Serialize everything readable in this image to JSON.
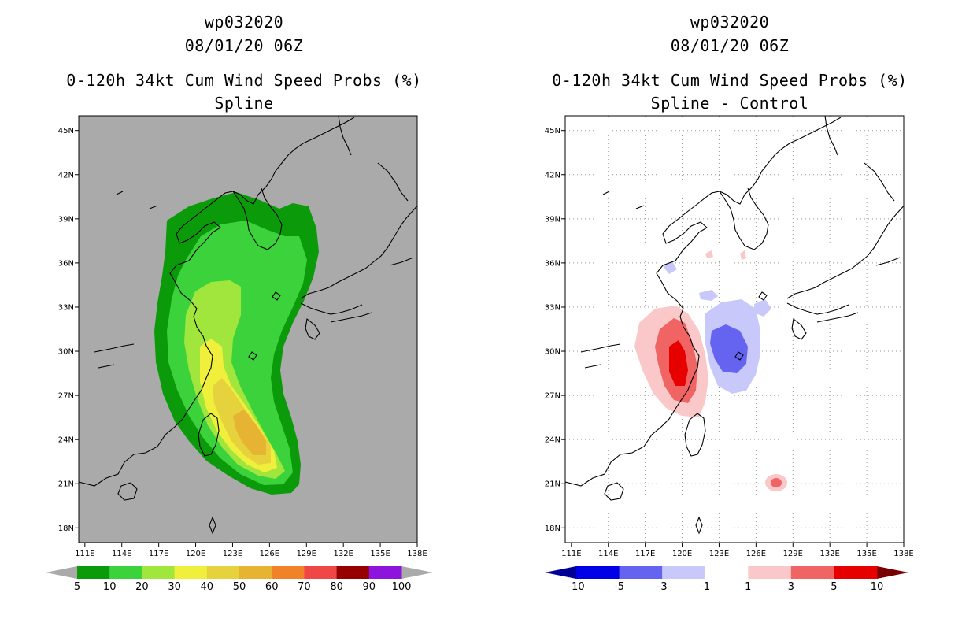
{
  "panels": [
    {
      "title_line1": "wp032020",
      "title_line2": "08/01/20 06Z",
      "title_line3": "0-120h 34kt Cum Wind Speed Probs (%)",
      "title_line4": "Spline"
    },
    {
      "title_line1": "wp032020",
      "title_line2": "08/01/20 06Z",
      "title_line3": "0-120h 34kt Cum Wind Speed Probs (%)",
      "title_line4": "Spline - Control"
    }
  ],
  "chart_data": [
    {
      "type": "heatmap",
      "title": "0-120h 34kt Cum Wind Speed Probs (%) Spline",
      "x_ticks": [
        "111E",
        "114E",
        "117E",
        "120E",
        "123E",
        "126E",
        "129E",
        "132E",
        "135E",
        "138E"
      ],
      "y_ticks": [
        "45N",
        "42N",
        "39N",
        "36N",
        "33N",
        "30N",
        "27N",
        "24N",
        "21N",
        "18N"
      ],
      "xlim": [
        110.5,
        138
      ],
      "ylim": [
        17,
        46
      ],
      "background": "#aaaaaa",
      "grid": false,
      "colorbar": {
        "labels": [
          "5",
          "10",
          "20",
          "30",
          "40",
          "50",
          "60",
          "70",
          "80",
          "90",
          "100"
        ],
        "colors": [
          "#0a9a0a",
          "#3cd23c",
          "#a0e63c",
          "#f0f03c",
          "#e6d23c",
          "#e6b432",
          "#f08228",
          "#f04646",
          "#960000",
          "#8c14dc"
        ],
        "under_color": "#aaaaaa",
        "over_color": "#aaaaaa"
      },
      "levels": [
        {
          "min": 5,
          "color": "#0a9a0a"
        },
        {
          "min": 10,
          "color": "#3cd23c"
        },
        {
          "min": 20,
          "color": "#a0e63c"
        },
        {
          "min": 30,
          "color": "#f0f03c"
        },
        {
          "min": 40,
          "color": "#e6d23c"
        },
        {
          "min": 50,
          "color": "#e6b432"
        }
      ],
      "max_value_region": {
        "lon": 124,
        "lat": 24,
        "value": 50
      }
    },
    {
      "type": "heatmap",
      "title": "0-120h 34kt Cum Wind Speed Probs (%) Spline - Control",
      "x_ticks": [
        "111E",
        "114E",
        "117E",
        "120E",
        "123E",
        "126E",
        "129E",
        "132E",
        "135E",
        "138E"
      ],
      "y_ticks": [
        "45N",
        "42N",
        "39N",
        "36N",
        "33N",
        "30N",
        "27N",
        "24N",
        "21N",
        "18N"
      ],
      "xlim": [
        110.5,
        138
      ],
      "ylim": [
        17,
        46
      ],
      "background": "#ffffff",
      "grid": true,
      "colorbar": {
        "labels": [
          "-10",
          "-5",
          "-3",
          "-1",
          "1",
          "3",
          "5",
          "10"
        ],
        "colors": [
          "#0000e6",
          "#6464f0",
          "#c8c8fa",
          "#ffffff",
          "#fac8c8",
          "#f06464",
          "#e60000"
        ],
        "under_color": "#000096",
        "over_color": "#780000"
      },
      "levels": [
        {
          "range": [
            1,
            3
          ],
          "color": "#fac8c8"
        },
        {
          "range": [
            3,
            5
          ],
          "color": "#f06464"
        },
        {
          "range": [
            5,
            10
          ],
          "color": "#e60000"
        },
        {
          "range": [
            -3,
            -1
          ],
          "color": "#c8c8fa"
        },
        {
          "range": [
            -5,
            -3
          ],
          "color": "#6464f0"
        }
      ],
      "positive_region": {
        "lon": 119.5,
        "lat": 29,
        "value": 5
      },
      "negative_region": {
        "lon": 124,
        "lat": 30,
        "value": -5
      },
      "isolated_positive": {
        "lon": 127.8,
        "lat": 21.1,
        "value": 3
      }
    }
  ]
}
